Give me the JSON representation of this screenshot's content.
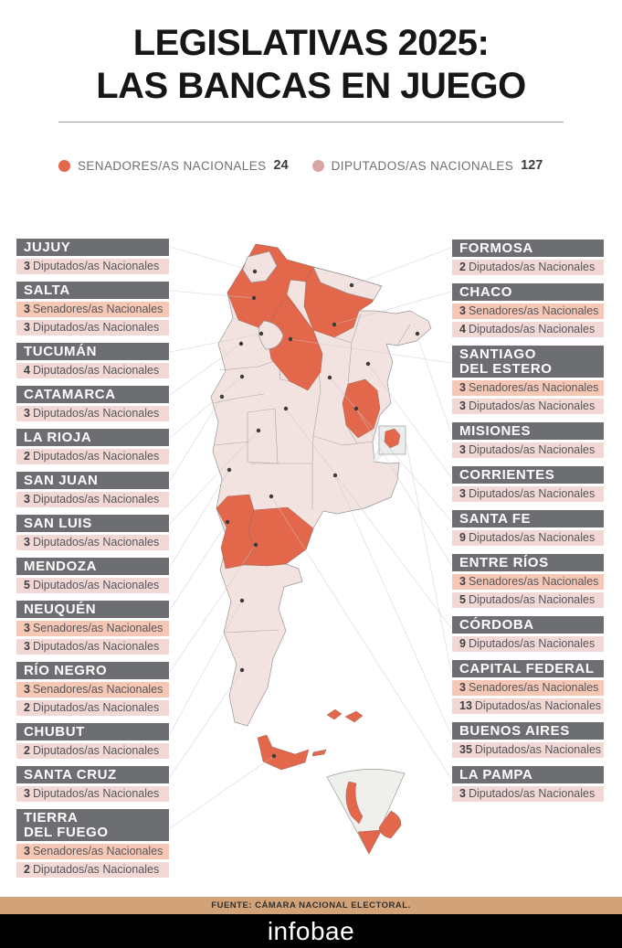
{
  "title": {
    "line1": "LEGISLATIVAS 2025:",
    "line2": "LAS BANCAS EN JUEGO"
  },
  "legend": {
    "senators": {
      "label": "SENADORES/AS NACIONALES",
      "value": "24"
    },
    "deputies": {
      "label": "DIPUTADOS/AS NACIONALES",
      "value": "127"
    }
  },
  "colors": {
    "senator_accent": "#E4664C",
    "deputy_accent": "#D9A5A2",
    "map_highlight": "#E2674B",
    "map_base": "#F2E3E1",
    "header_bar": "#6D6E71",
    "senator_row_bg": "#F6C7B5",
    "deputy_row_bg": "#F2D8D5",
    "source_bar_bg": "#D2A278"
  },
  "columns": {
    "left": [
      {
        "name": "JUJUY",
        "seats": [
          {
            "count": "3",
            "label": "Diputados/as Nacionales",
            "type": "deputies"
          }
        ]
      },
      {
        "name": "SALTA",
        "seats": [
          {
            "count": "3",
            "label": "Senadores/as Nacionales",
            "type": "senators"
          },
          {
            "count": "3",
            "label": "Diputados/as Nacionales",
            "type": "deputies"
          }
        ]
      },
      {
        "name": "TUCUMÁN",
        "seats": [
          {
            "count": "4",
            "label": "Diputados/as Nacionales",
            "type": "deputies"
          }
        ]
      },
      {
        "name": "CATAMARCA",
        "seats": [
          {
            "count": "3",
            "label": "Diputados/as Nacionales",
            "type": "deputies"
          }
        ]
      },
      {
        "name": "LA RIOJA",
        "seats": [
          {
            "count": "2",
            "label": "Diputados/as Nacionales",
            "type": "deputies"
          }
        ]
      },
      {
        "name": "SAN JUAN",
        "seats": [
          {
            "count": "3",
            "label": "Diputados/as Nacionales",
            "type": "deputies"
          }
        ]
      },
      {
        "name": "SAN LUIS",
        "seats": [
          {
            "count": "3",
            "label": "Diputados/as Nacionales",
            "type": "deputies"
          }
        ]
      },
      {
        "name": "MENDOZA",
        "seats": [
          {
            "count": "5",
            "label": "Diputados/as Nacionales",
            "type": "deputies"
          }
        ]
      },
      {
        "name": "NEUQUÉN",
        "seats": [
          {
            "count": "3",
            "label": "Senadores/as Nacionales",
            "type": "senators"
          },
          {
            "count": "3",
            "label": "Diputados/as Nacionales",
            "type": "deputies"
          }
        ]
      },
      {
        "name": "RÍO  NEGRO",
        "seats": [
          {
            "count": "3",
            "label": "Senadores/as Nacionales",
            "type": "senators"
          },
          {
            "count": "2",
            "label": "Diputados/as Nacionales",
            "type": "deputies"
          }
        ]
      },
      {
        "name": "CHUBUT",
        "seats": [
          {
            "count": "2",
            "label": "Diputados/as Nacionales",
            "type": "deputies"
          }
        ]
      },
      {
        "name": "SANTA CRUZ",
        "seats": [
          {
            "count": "3",
            "label": "Diputados/as Nacionales",
            "type": "deputies"
          }
        ]
      },
      {
        "name": "TIERRA DEL FUEGO",
        "name_lines": [
          "TIERRA",
          "DEL FUEGO"
        ],
        "seats": [
          {
            "count": "3",
            "label": "Senadores/as Nacionales",
            "type": "senators"
          },
          {
            "count": "2",
            "label": "Diputados/as Nacionales",
            "type": "deputies"
          }
        ]
      }
    ],
    "right": [
      {
        "name": "FORMOSA",
        "seats": [
          {
            "count": "2",
            "label": "Diputados/as Nacionales",
            "type": "deputies"
          }
        ]
      },
      {
        "name": "CHACO",
        "seats": [
          {
            "count": "3",
            "label": "Senadores/as Nacionales",
            "type": "senators"
          },
          {
            "count": "4",
            "label": "Diputados/as Nacionales",
            "type": "deputies"
          }
        ]
      },
      {
        "name": "SANTIAGO DEL ESTERO",
        "name_lines": [
          "SANTIAGO",
          "DEL ESTERO"
        ],
        "seats": [
          {
            "count": "3",
            "label": "Senadores/as Nacionales",
            "type": "senators"
          },
          {
            "count": "3",
            "label": "Diputados/as Nacionales",
            "type": "deputies"
          }
        ]
      },
      {
        "name": "MISIONES",
        "seats": [
          {
            "count": "3",
            "label": "Diputados/as Nacionales",
            "type": "deputies"
          }
        ]
      },
      {
        "name": "CORRIENTES",
        "seats": [
          {
            "count": "3",
            "label": "Diputados/as Nacionales",
            "type": "deputies"
          }
        ]
      },
      {
        "name": "SANTA FE",
        "seats": [
          {
            "count": "9",
            "label": "Diputados/as Nacionales",
            "type": "deputies"
          }
        ]
      },
      {
        "name": "ENTRE RÍOS",
        "seats": [
          {
            "count": "3",
            "label": "Senadores/as Nacionales",
            "type": "senators"
          },
          {
            "count": "5",
            "label": "Diputados/as Nacionales",
            "type": "deputies"
          }
        ]
      },
      {
        "name": "CÓRDOBA",
        "seats": [
          {
            "count": "9",
            "label": "Diputados/as Nacionales",
            "type": "deputies"
          }
        ]
      },
      {
        "name": "CAPITAL FEDERAL",
        "seats": [
          {
            "count": "3",
            "label": "Senadores/as Nacionales",
            "type": "senators"
          },
          {
            "count": "13",
            "label": "Diputados/as Nacionales",
            "type": "deputies"
          }
        ]
      },
      {
        "name": "BUENOS AIRES",
        "seats": [
          {
            "count": "35",
            "label": "Diputados/as Nacionales",
            "type": "deputies"
          }
        ]
      },
      {
        "name": "LA PAMPA",
        "seats": [
          {
            "count": "3",
            "label": "Diputados/as Nacionales",
            "type": "deputies"
          }
        ]
      }
    ]
  },
  "map": {
    "highlighted_provinces": [
      "Salta",
      "Chaco",
      "Santiago del Estero",
      "Entre Ríos",
      "Capital Federal",
      "Neuquén",
      "Río Negro",
      "Tierra del Fuego"
    ]
  },
  "footer": {
    "source": "FUENTE: CÁMARA NACIONAL ELECTORAL.",
    "brand": "infobae"
  },
  "chart_data": {
    "type": "map",
    "title": "LEGISLATIVAS 2025: LAS BANCAS EN JUEGO",
    "totals": {
      "senadores_nacionales": 24,
      "diputados_nacionales": 127
    },
    "provinces": [
      {
        "name": "Jujuy",
        "diputados": 3
      },
      {
        "name": "Salta",
        "senadores": 3,
        "diputados": 3
      },
      {
        "name": "Tucumán",
        "diputados": 4
      },
      {
        "name": "Catamarca",
        "diputados": 3
      },
      {
        "name": "La Rioja",
        "diputados": 2
      },
      {
        "name": "San Juan",
        "diputados": 3
      },
      {
        "name": "San Luis",
        "diputados": 3
      },
      {
        "name": "Mendoza",
        "diputados": 5
      },
      {
        "name": "Neuquén",
        "senadores": 3,
        "diputados": 3
      },
      {
        "name": "Río Negro",
        "senadores": 3,
        "diputados": 2
      },
      {
        "name": "Chubut",
        "diputados": 2
      },
      {
        "name": "Santa Cruz",
        "diputados": 3
      },
      {
        "name": "Tierra del Fuego",
        "senadores": 3,
        "diputados": 2
      },
      {
        "name": "Formosa",
        "diputados": 2
      },
      {
        "name": "Chaco",
        "senadores": 3,
        "diputados": 4
      },
      {
        "name": "Santiago del Estero",
        "senadores": 3,
        "diputados": 3
      },
      {
        "name": "Misiones",
        "diputados": 3
      },
      {
        "name": "Corrientes",
        "diputados": 3
      },
      {
        "name": "Santa Fe",
        "diputados": 9
      },
      {
        "name": "Entre Ríos",
        "senadores": 3,
        "diputados": 5
      },
      {
        "name": "Córdoba",
        "diputados": 9
      },
      {
        "name": "Capital Federal",
        "senadores": 3,
        "diputados": 13
      },
      {
        "name": "Buenos Aires",
        "diputados": 35
      },
      {
        "name": "La Pampa",
        "diputados": 3
      }
    ]
  }
}
